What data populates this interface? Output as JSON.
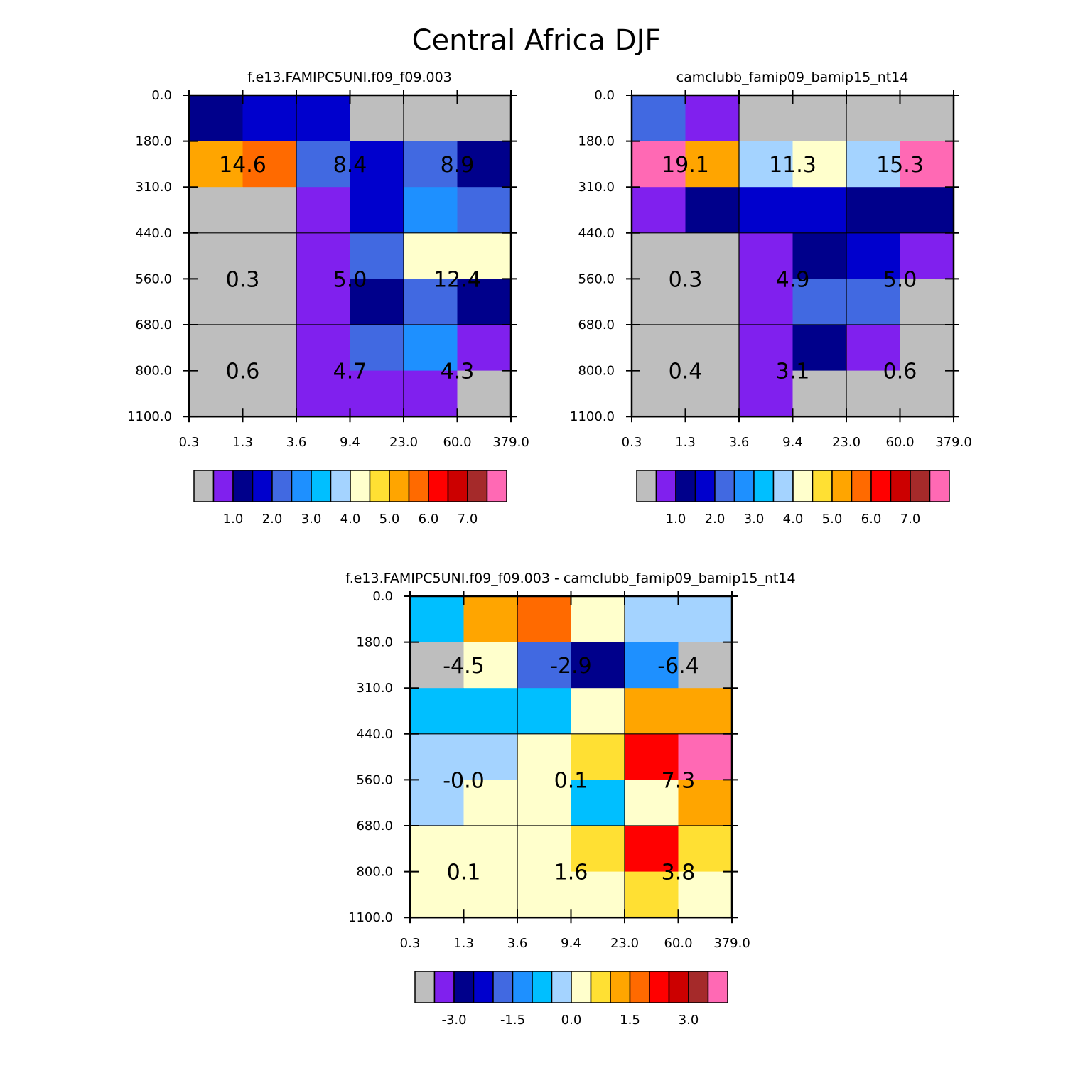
{
  "title": "Central Africa DJF",
  "palette": {
    "gray": "#bebebe",
    "purple": "#8020ee",
    "navy": "#00008b",
    "blue": "#0000cd",
    "royal": "#4169e1",
    "dodger": "#1e90ff",
    "deepsky": "#00bfff",
    "lightsky": "#a4d3ff",
    "cream": "#ffffcc",
    "gold": "#ffe033",
    "orange": "#ffa500",
    "darkorange": "#ff6a00",
    "red": "#ff0000",
    "crimson": "#cc0000",
    "brown": "#a52a2a",
    "pink": "#ff69b4"
  },
  "chart_data": [
    {
      "type": "heatmap",
      "title": "f.e13.FAMIPC5UNI.f09_f09.003",
      "x_tick_labels": [
        "0.3",
        "1.3",
        "3.6",
        "9.4",
        "23.0",
        "60.0",
        "379.0"
      ],
      "y_tick_labels": [
        "0.0",
        "180.0",
        "310.0",
        "440.0",
        "560.0",
        "680.0",
        "800.0",
        "1100.0"
      ],
      "cells": [
        [
          "navy",
          "blue",
          "blue",
          "gray",
          "gray",
          "gray"
        ],
        [
          "orange",
          "darkorange",
          "royal",
          "blue",
          "royal",
          "navy"
        ],
        [
          "gray",
          "gray",
          "purple",
          "blue",
          "dodger",
          "royal"
        ],
        [
          "gray",
          "gray",
          "purple",
          "royal",
          "cream",
          "cream"
        ],
        [
          "gray",
          "gray",
          "purple",
          "navy",
          "royal",
          "navy"
        ],
        [
          "gray",
          "gray",
          "purple",
          "royal",
          "dodger",
          "purple"
        ],
        [
          "gray",
          "gray",
          "purple",
          "purple",
          "purple",
          "gray"
        ]
      ],
      "block_values": [
        [
          "14.6",
          "8.4",
          "8.9"
        ],
        [
          "0.3",
          "5.0",
          "12.4"
        ],
        [
          "0.6",
          "4.7",
          "4.3"
        ]
      ],
      "colorbar": {
        "colors": [
          "gray",
          "purple",
          "navy",
          "blue",
          "royal",
          "dodger",
          "deepsky",
          "lightsky",
          "cream",
          "gold",
          "orange",
          "darkorange",
          "red",
          "crimson",
          "brown",
          "pink"
        ],
        "labels": [
          "1.0",
          "2.0",
          "3.0",
          "4.0",
          "5.0",
          "6.0",
          "7.0"
        ]
      }
    },
    {
      "type": "heatmap",
      "title": "camclubb_famip09_bamip15_nt14",
      "x_tick_labels": [
        "0.3",
        "1.3",
        "3.6",
        "9.4",
        "23.0",
        "60.0",
        "379.0"
      ],
      "y_tick_labels": [
        "0.0",
        "180.0",
        "310.0",
        "440.0",
        "560.0",
        "680.0",
        "800.0",
        "1100.0"
      ],
      "cells": [
        [
          "royal",
          "purple",
          "gray",
          "gray",
          "gray",
          "gray"
        ],
        [
          "pink",
          "orange",
          "lightsky",
          "cream",
          "lightsky",
          "pink"
        ],
        [
          "purple",
          "navy",
          "blue",
          "blue",
          "navy",
          "navy"
        ],
        [
          "gray",
          "gray",
          "purple",
          "navy",
          "blue",
          "purple"
        ],
        [
          "gray",
          "gray",
          "purple",
          "royal",
          "royal",
          "gray"
        ],
        [
          "gray",
          "gray",
          "purple",
          "navy",
          "purple",
          "gray"
        ],
        [
          "gray",
          "gray",
          "purple",
          "gray",
          "gray",
          "gray"
        ]
      ],
      "block_values": [
        [
          "19.1",
          "11.3",
          "15.3"
        ],
        [
          "0.3",
          "4.9",
          "5.0"
        ],
        [
          "0.4",
          "3.1",
          "0.6"
        ]
      ],
      "colorbar": {
        "colors": [
          "gray",
          "purple",
          "navy",
          "blue",
          "royal",
          "dodger",
          "deepsky",
          "lightsky",
          "cream",
          "gold",
          "orange",
          "darkorange",
          "red",
          "crimson",
          "brown",
          "pink"
        ],
        "labels": [
          "1.0",
          "2.0",
          "3.0",
          "4.0",
          "5.0",
          "6.0",
          "7.0"
        ]
      }
    },
    {
      "type": "heatmap",
      "title": "f.e13.FAMIPC5UNI.f09_f09.003 - camclubb_famip09_bamip15_nt14",
      "x_tick_labels": [
        "0.3",
        "1.3",
        "3.6",
        "9.4",
        "23.0",
        "60.0",
        "379.0"
      ],
      "y_tick_labels": [
        "0.0",
        "180.0",
        "310.0",
        "440.0",
        "560.0",
        "680.0",
        "800.0",
        "1100.0"
      ],
      "cells": [
        [
          "deepsky",
          "orange",
          "darkorange",
          "cream",
          "lightsky",
          "lightsky"
        ],
        [
          "gray",
          "cream",
          "royal",
          "navy",
          "dodger",
          "gray"
        ],
        [
          "deepsky",
          "deepsky",
          "deepsky",
          "cream",
          "orange",
          "orange"
        ],
        [
          "lightsky",
          "lightsky",
          "cream",
          "gold",
          "red",
          "pink"
        ],
        [
          "lightsky",
          "cream",
          "cream",
          "deepsky",
          "cream",
          "orange"
        ],
        [
          "cream",
          "cream",
          "cream",
          "gold",
          "red",
          "gold"
        ],
        [
          "cream",
          "cream",
          "cream",
          "cream",
          "gold",
          "cream"
        ]
      ],
      "block_values": [
        [
          "-4.5",
          "-2.9",
          "-6.4"
        ],
        [
          "-0.0",
          "0.1",
          "7.3"
        ],
        [
          "0.1",
          "1.6",
          "3.8"
        ]
      ],
      "colorbar": {
        "colors": [
          "gray",
          "purple",
          "navy",
          "blue",
          "royal",
          "dodger",
          "deepsky",
          "lightsky",
          "cream",
          "gold",
          "orange",
          "darkorange",
          "red",
          "crimson",
          "brown",
          "pink"
        ],
        "labels": [
          "-3.0",
          "-1.5",
          "0.0",
          "1.5",
          "3.0"
        ]
      }
    }
  ]
}
